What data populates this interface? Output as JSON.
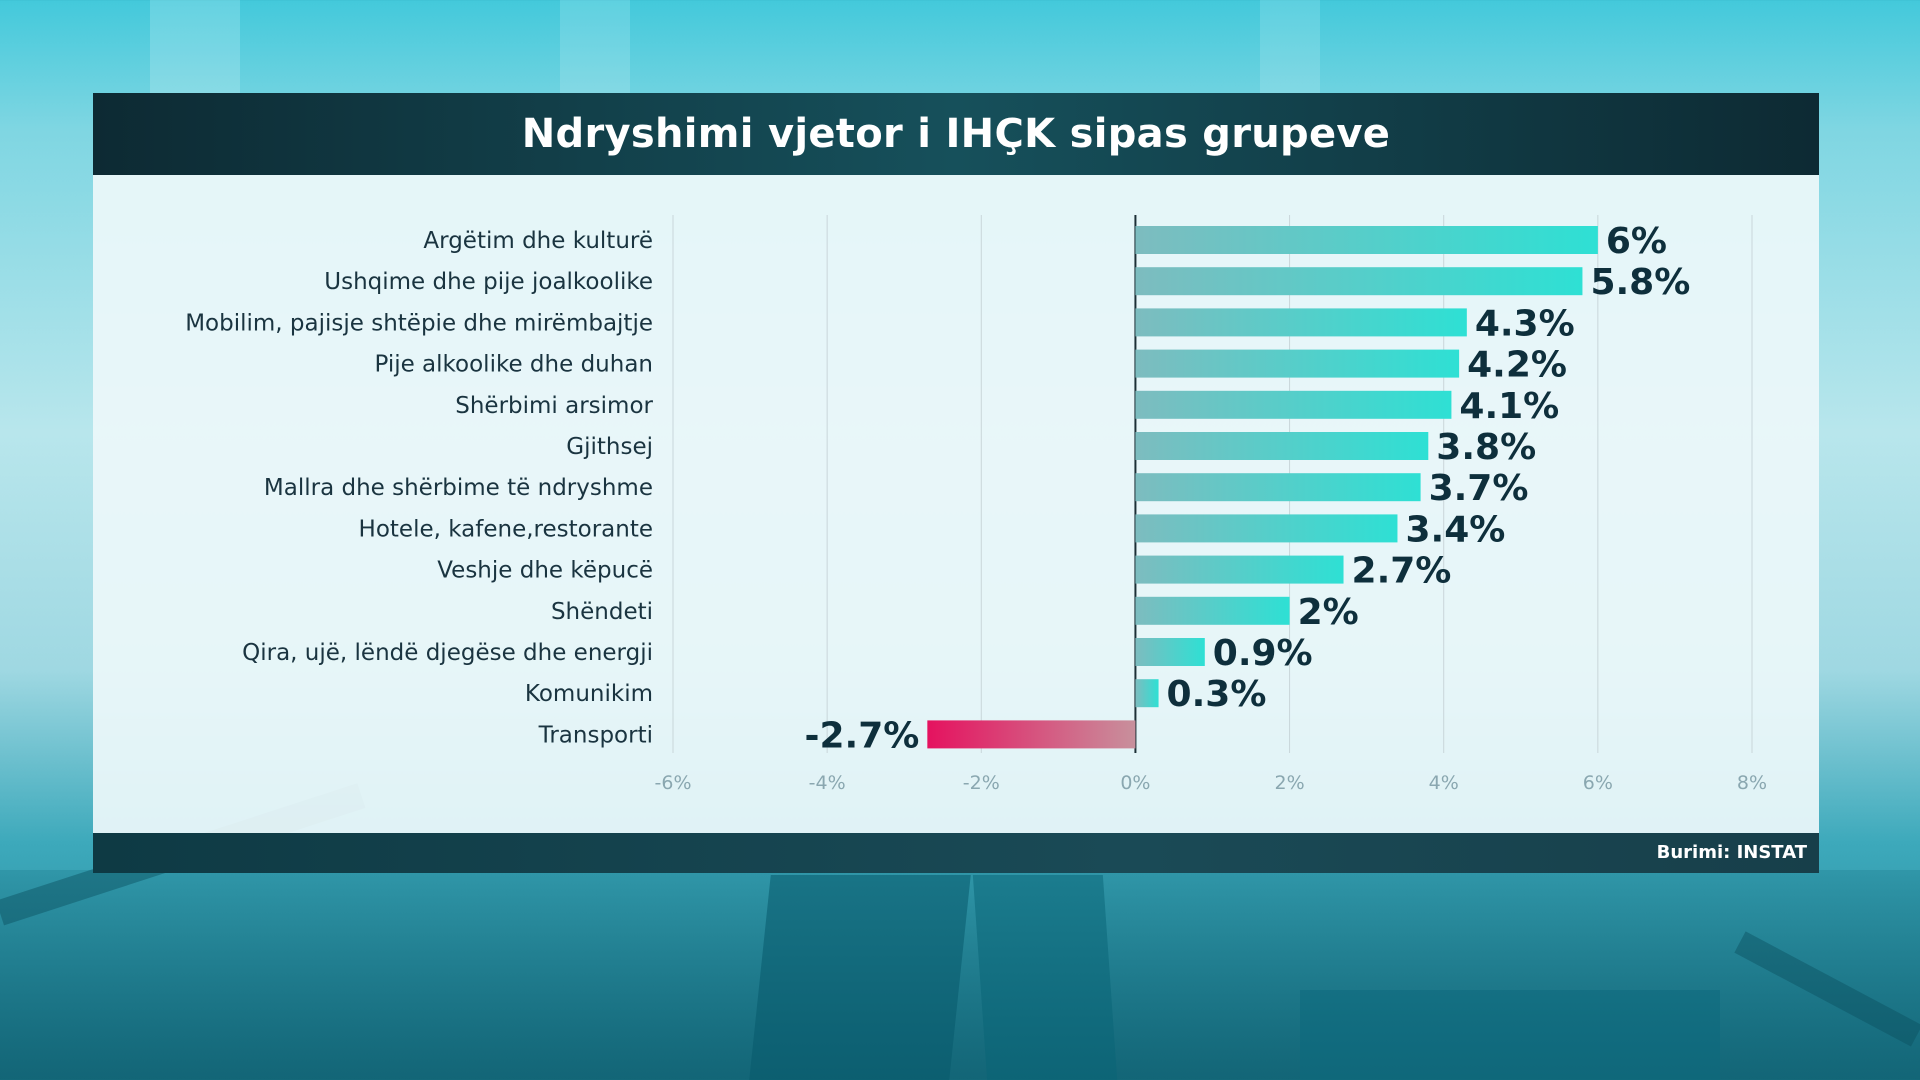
{
  "title": "Ndryshimi vjetor i IHÇK sipas grupeve",
  "source": "Burimi: INSTAT",
  "colors": {
    "positive_start": "#7dbcbf",
    "positive_end": "#2ee0d4",
    "negative_start": "#e5125f",
    "negative_end": "#c8909c",
    "title_bar": "#0d2a33",
    "value_text": "#0e2f3c"
  },
  "chart_data": {
    "type": "bar",
    "orientation": "horizontal",
    "categories": [
      "Argëtim dhe kulturë",
      "Ushqime dhe pije joalkoolike",
      "Mobilim, pajisje shtëpie dhe mirëmbajtje",
      "Pije alkoolike dhe duhan",
      "Shërbimi arsimor",
      "Gjithsej",
      "Mallra dhe shërbime të ndryshme",
      "Hotele, kafene,restorante",
      "Veshje dhe këpucë",
      "Shëndeti",
      "Qira, ujë, lëndë djegëse dhe energji",
      "Komunikim",
      "Transporti"
    ],
    "values": [
      6,
      5.8,
      4.3,
      4.2,
      4.1,
      3.8,
      3.7,
      3.4,
      2.7,
      2,
      0.9,
      0.3,
      -2.7
    ],
    "value_labels": [
      "6%",
      "5.8%",
      "4.3%",
      "4.2%",
      "4.1%",
      "3.8%",
      "3.7%",
      "3.4%",
      "2.7%",
      "2%",
      "0.9%",
      "0.3%",
      "-2.7%"
    ],
    "xlim": [
      -6,
      8
    ],
    "x_ticks": [
      -6,
      -4,
      -2,
      0,
      2,
      4,
      6,
      8
    ],
    "x_tick_labels": [
      "-6%",
      "-4%",
      "-2%",
      "0%",
      "2%",
      "4%",
      "6%",
      "8%"
    ],
    "grid": true
  }
}
